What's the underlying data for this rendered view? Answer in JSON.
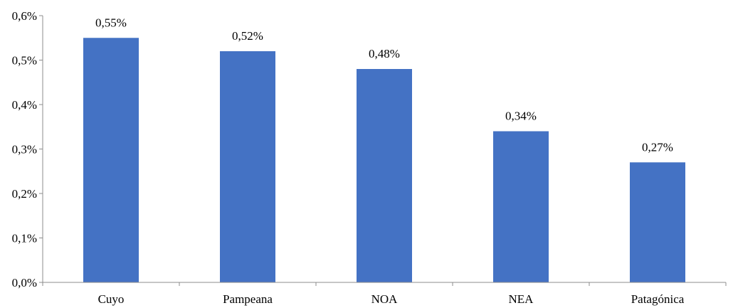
{
  "chart_data": {
    "type": "bar",
    "categories": [
      "Cuyo",
      "Pampeana",
      "NOA",
      "NEA",
      "Patagónica"
    ],
    "values": [
      0.55,
      0.52,
      0.48,
      0.34,
      0.27
    ],
    "value_labels": [
      "0,55%",
      "0,52%",
      "0,48%",
      "0,34%",
      "0,27%"
    ],
    "y_ticks": [
      0.0,
      0.1,
      0.2,
      0.3,
      0.4,
      0.5,
      0.6
    ],
    "y_tick_labels": [
      "0,0%",
      "0,1%",
      "0,2%",
      "0,3%",
      "0,4%",
      "0,5%",
      "0,6%"
    ],
    "ylim": [
      0,
      0.6
    ],
    "grid": false,
    "title": "",
    "xlabel": "",
    "ylabel": "",
    "bar_color": "#4472c4",
    "axis_color": "#8c8c8c"
  }
}
